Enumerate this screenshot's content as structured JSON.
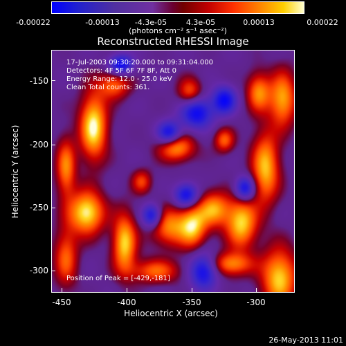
{
  "colorbar": {
    "ticks": [
      "-0.00022",
      "-0.00013",
      "-4.3e-05",
      "4.3e-05",
      "0.00013",
      "0.00022"
    ],
    "units": "(photons cm⁻² s⁻¹ asec⁻²)"
  },
  "title": "Reconstructed RHESSI Image",
  "annotations": {
    "time": "17-Jul-2003 09:30:20.000 to 09:31:04.000",
    "detectors": "Detectors: 4F 5F 6F 7F 8F, Att 0",
    "energy": "Energy Range: 12.0 - 25.0 keV",
    "clean": "Clean    Total counts: 361.",
    "peak": "Position of Peak = [-429,-181]"
  },
  "axes": {
    "xlabel": "Heliocentric X (arcsec)",
    "ylabel": "Heliocentric Y (arcsec)",
    "xticks": [
      "-450",
      "-400",
      "-350",
      "-300"
    ],
    "yticks": [
      "-150",
      "-200",
      "-250",
      "-300"
    ]
  },
  "footer": {
    "date": "26-May-2013 11:01"
  },
  "colors": {
    "background": "#000000",
    "low": "#0000ff",
    "mid": "#5b1f86",
    "high": "#ffffd0"
  }
}
